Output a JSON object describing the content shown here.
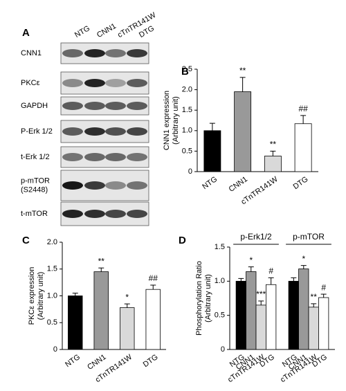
{
  "blot": {
    "panel": "A",
    "lanes": [
      "NTG",
      "CNN1",
      "cTnTR141W",
      "DTG"
    ],
    "rows": [
      [
        "CNN1"
      ],
      [
        "PKCε"
      ],
      [
        "GAPDH"
      ],
      [
        "P-Erk 1/2"
      ],
      [
        "t-Erk 1/2"
      ],
      [
        "p-mTOR",
        "(S2448)"
      ],
      [
        "t-mTOR"
      ]
    ]
  },
  "chart_data": [
    {
      "type": "bar",
      "panel": "B",
      "ylabel": [
        "CNN1 expression",
        "(Arbitrary unit)"
      ],
      "categories": [
        "NTG",
        "CNN1",
        "cTnTR141W",
        "DTG"
      ],
      "colors": [
        "#000000",
        "#999999",
        "#d9d9d9",
        "#ffffff"
      ],
      "values": [
        1.0,
        1.95,
        0.38,
        1.17
      ],
      "errors": [
        0.18,
        0.35,
        0.12,
        0.2
      ],
      "annotations": [
        null,
        "**",
        "**",
        "##"
      ],
      "ylim": [
        0,
        2.5
      ],
      "yticks": [
        0,
        0.5,
        {
          "value": 1,
          "label": "1.0"
        },
        1.5,
        {
          "value": 2,
          "label": "2.0"
        },
        2.5
      ]
    },
    {
      "type": "bar",
      "panel": "C",
      "ylabel": [
        "PKCε expression",
        "(Arbitrary unit)"
      ],
      "categories": [
        "NTG",
        "CNN1",
        "cTnTR141W",
        "DTG"
      ],
      "colors": [
        "#000000",
        "#999999",
        "#d9d9d9",
        "#ffffff"
      ],
      "values": [
        1.0,
        1.45,
        0.78,
        1.12
      ],
      "errors": [
        0.05,
        0.07,
        0.07,
        0.08
      ],
      "annotations": [
        null,
        "**",
        "*",
        "##"
      ],
      "ylim": [
        0,
        2
      ],
      "yticks": [
        0,
        0.5,
        {
          "value": 1,
          "label": "1.0"
        },
        1.5,
        {
          "value": 2,
          "label": "2.0"
        }
      ]
    },
    {
      "type": "bar",
      "panel": "D",
      "ylabel": [
        "Phosphorylation Ratio",
        "(Arbitrary unit)"
      ],
      "categories": [
        "NTG",
        "CNN1",
        "cTnTR141W",
        "DTG"
      ],
      "colors": [
        "#000000",
        "#999999",
        "#d9d9d9",
        "#ffffff"
      ],
      "groups": [
        {
          "name": "p-Erk1/2",
          "values": [
            1.0,
            1.14,
            0.65,
            0.95
          ],
          "errors": [
            0.04,
            0.07,
            0.06,
            0.1
          ],
          "annotations": [
            null,
            "*",
            "***",
            "#"
          ]
        },
        {
          "name": "p-mTOR",
          "values": [
            1.0,
            1.18,
            0.62,
            0.76
          ],
          "errors": [
            0.05,
            0.05,
            0.05,
            0.05
          ],
          "annotations": [
            null,
            "*",
            "**",
            "#"
          ]
        }
      ],
      "ylim": [
        0,
        1.5
      ],
      "yticks": [
        0,
        0.5,
        {
          "value": 1,
          "label": "1.0"
        },
        1.5
      ]
    }
  ]
}
